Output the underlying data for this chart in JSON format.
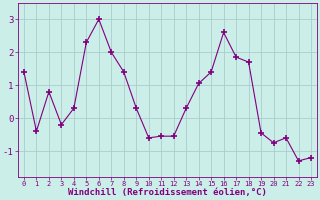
{
  "x": [
    0,
    1,
    2,
    3,
    4,
    5,
    6,
    7,
    8,
    9,
    10,
    11,
    12,
    13,
    14,
    15,
    16,
    17,
    18,
    19,
    20,
    21,
    22,
    23
  ],
  "y": [
    1.4,
    -0.4,
    0.8,
    -0.2,
    0.3,
    2.3,
    3.0,
    2.0,
    1.4,
    0.3,
    -0.6,
    -0.55,
    -0.55,
    0.3,
    1.05,
    1.4,
    2.6,
    1.85,
    1.7,
    -0.45,
    -0.75,
    -0.6,
    -1.3,
    -1.2
  ],
  "line_color": "#800080",
  "marker": "+",
  "marker_color": "#800080",
  "bg_color": "#cceee8",
  "grid_color": "#aacccc",
  "xlabel": "Windchill (Refroidissement éolien,°C)",
  "ylim": [
    -1.8,
    3.5
  ],
  "yticks": [
    -1,
    0,
    1,
    2,
    3
  ],
  "xtick_fontsize": 5.0,
  "ytick_fontsize": 6.5,
  "xlabel_fontsize": 6.5
}
